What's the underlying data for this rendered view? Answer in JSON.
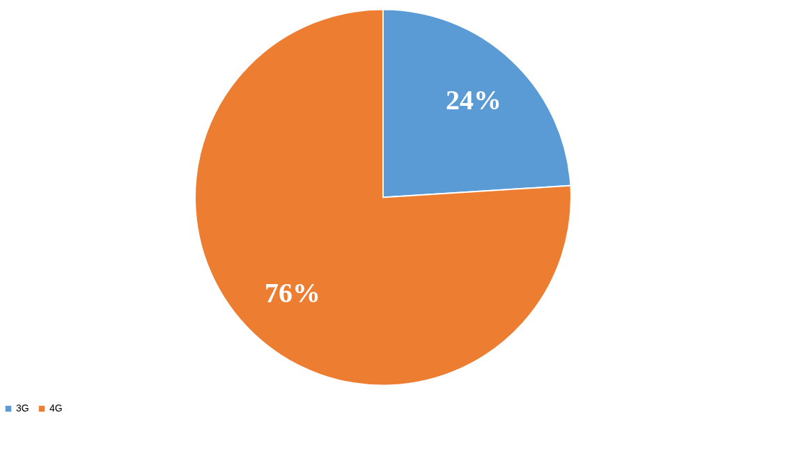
{
  "chart_data": {
    "type": "pie",
    "categories": [
      "3G",
      "4G"
    ],
    "values": [
      24,
      76
    ],
    "colors": [
      "#5b9bd5",
      "#ed7d31"
    ],
    "value_labels": [
      "24%",
      "76%"
    ],
    "legend": "bottom"
  }
}
